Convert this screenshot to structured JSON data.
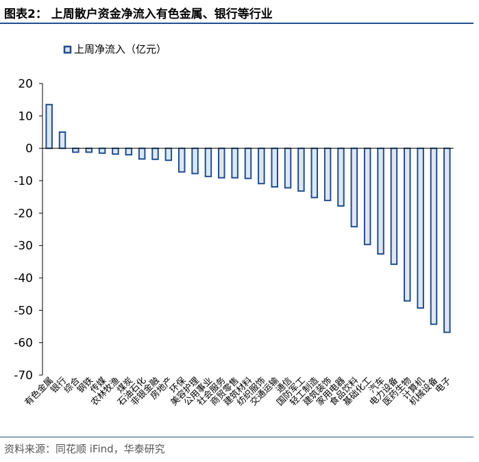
{
  "title": "图表2：  上周散户资金净流入有色金属、银行等行业",
  "source": "资料来源：同花顺 iFind，华泰研究",
  "colors": {
    "accent": "#1f4e8c",
    "bar_fill": "#dde6f2",
    "bar_border": "#1f4e8c",
    "axis": "#000000"
  },
  "chart_data": {
    "type": "bar",
    "legend": {
      "position": "top-left"
    },
    "ylim": [
      -70,
      20
    ],
    "yticks": [
      20,
      10,
      0,
      -10,
      -20,
      -30,
      -40,
      -50,
      -60,
      -70
    ],
    "grid": false,
    "categories": [
      "有色金属",
      "银行",
      "综合",
      "钢铁",
      "传媒",
      "农林牧渔",
      "煤炭",
      "石油石化",
      "非银金融",
      "房地产",
      "环保",
      "美容护理",
      "公用事业",
      "社会服务",
      "商贸零售",
      "建筑材料",
      "纺织服饰",
      "交通运输",
      "通信",
      "国防军工",
      "轻工制造",
      "建筑装饰",
      "家用电器",
      "食品饮料",
      "基础化工",
      "汽车",
      "电力设备",
      "医药生物",
      "计算机",
      "机械设备",
      "电子"
    ],
    "series": [
      {
        "name": "上周净流入（亿元）",
        "values": [
          13.5,
          5.0,
          -1.2,
          -1.2,
          -1.5,
          -1.8,
          -2.0,
          -3.3,
          -3.4,
          -3.7,
          -7.3,
          -7.8,
          -8.7,
          -9.1,
          -9.1,
          -9.3,
          -10.9,
          -11.9,
          -12.2,
          -13.2,
          -15.2,
          -16.1,
          -17.8,
          -24.2,
          -29.7,
          -32.6,
          -35.8,
          -47.1,
          -49.3,
          -54.3,
          -56.8
        ]
      }
    ]
  }
}
